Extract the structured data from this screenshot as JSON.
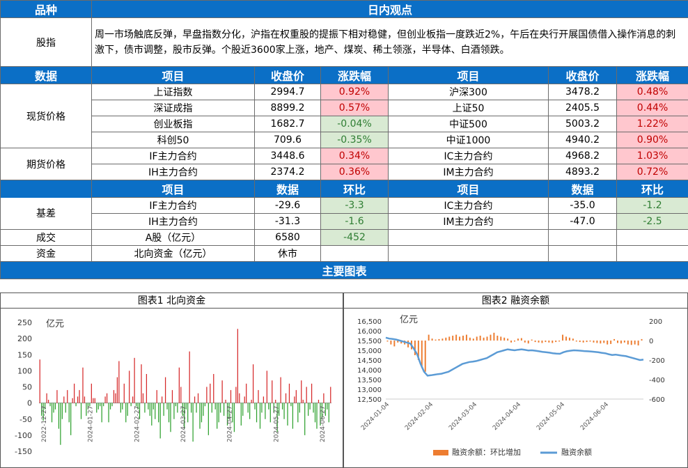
{
  "header": {
    "col1": "品种",
    "col2": "日内观点"
  },
  "index_row": {
    "label": "股指",
    "comment": "周一市场触底反弹，早盘指数分化，沪指在权重股的提振下相对稳健，但创业板指一度跌近2%，午后在央行开展国债借入操作消息的刺激下，债市调整，股市反弹。个股近3600家上涨，地产、煤炭、稀土领涨，半导体、白酒领跌。"
  },
  "price_header": [
    "数据",
    "项目",
    "收盘价",
    "涨跌幅",
    "项目",
    "收盘价",
    "涨跌幅"
  ],
  "spot": {
    "label": "现货价格",
    "rows": [
      {
        "item1": "上证指数",
        "close1": "2994.7",
        "chg1": "0.92%",
        "dir1": "pos",
        "item2": "沪深300",
        "close2": "3478.2",
        "chg2": "0.48%",
        "dir2": "pos"
      },
      {
        "item1": "深证成指",
        "close1": "8899.2",
        "chg1": "0.57%",
        "dir1": "pos",
        "item2": "上证50",
        "close2": "2405.5",
        "chg2": "0.44%",
        "dir2": "pos"
      },
      {
        "item1": "创业板指",
        "close1": "1682.7",
        "chg1": "-0.04%",
        "dir1": "neg",
        "item2": "中证500",
        "close2": "5003.2",
        "chg2": "1.22%",
        "dir2": "pos"
      },
      {
        "item1": "科创50",
        "close1": "709.6",
        "chg1": "-0.35%",
        "dir1": "neg",
        "item2": "中证1000",
        "close2": "4940.2",
        "chg2": "0.90%",
        "dir2": "pos"
      }
    ]
  },
  "futures": {
    "label": "期货价格",
    "rows": [
      {
        "item1": "IF主力合约",
        "close1": "3448.6",
        "chg1": "0.34%",
        "dir1": "pos",
        "item2": "IC主力合约",
        "close2": "4968.2",
        "chg2": "1.03%",
        "dir2": "pos"
      },
      {
        "item1": "IH主力合约",
        "close1": "2374.2",
        "chg1": "0.36%",
        "dir1": "pos",
        "item2": "IM主力合约",
        "close2": "4893.2",
        "chg2": "0.72%",
        "dir2": "pos"
      }
    ]
  },
  "basis_header": [
    "项目",
    "数据",
    "环比",
    "项目",
    "数据",
    "环比"
  ],
  "basis": {
    "label": "基差",
    "rows": [
      {
        "item1": "IF主力合约",
        "val1": "-29.6",
        "chg1": "-3.3",
        "item2": "IC主力合约",
        "val2": "-35.0",
        "chg2": "-1.2"
      },
      {
        "item1": "IH主力合约",
        "val1": "-31.3",
        "chg1": "-1.6",
        "item2": "IM主力合约",
        "val2": "-47.0",
        "chg2": "-2.5"
      }
    ]
  },
  "turnover": {
    "label": "成交",
    "item": "A股（亿元）",
    "val": "6580",
    "chg": "-452"
  },
  "capital": {
    "label": "资金",
    "item": "北向资金（亿元）",
    "val": "休市"
  },
  "charts_header": "主要图表",
  "chart_data": [
    {
      "type": "bar",
      "title": "图表1 北向资金",
      "ylabel": "亿元",
      "ylim": [
        -150,
        250
      ],
      "yticks": [
        250,
        200,
        150,
        100,
        50,
        0,
        -50,
        -100,
        -150
      ],
      "xticks": [
        "2022-12-27",
        "2024-01-27",
        "2024-02-27",
        "2024-03-27",
        "2024-04-27",
        "2024-05-27",
        "2024-06-27"
      ],
      "pos_color": "#d62728",
      "neg_color": "#2ca02c",
      "values": [
        135,
        -40,
        -55,
        -20,
        30,
        10,
        -10,
        -60,
        -30,
        -20,
        40,
        -80,
        -130,
        -50,
        20,
        -30,
        40,
        -60,
        -100,
        15,
        60,
        -10,
        20,
        40,
        -50,
        110,
        20,
        -40,
        -20,
        -10,
        60,
        15,
        15,
        -30,
        -20,
        -10,
        -60,
        -10,
        20,
        30,
        -60,
        -20,
        -10,
        40,
        30,
        80,
        130,
        -30,
        -20,
        60,
        -60,
        -40,
        100,
        -10,
        20,
        140,
        -10,
        -20,
        -50,
        120,
        30,
        -30,
        90,
        -20,
        -40,
        -70,
        -20,
        -50,
        40,
        -60,
        -110,
        20,
        -40,
        80,
        -20,
        -60,
        -90,
        40,
        -50,
        -10,
        -30,
        110,
        50,
        -40,
        -80,
        -20,
        -60,
        160,
        -30,
        -120,
        20,
        -30,
        30,
        -80,
        -60,
        -40,
        -10,
        50,
        -100,
        60,
        -30,
        90,
        -20,
        -80,
        -60,
        -30,
        70,
        -40,
        10,
        -70,
        -50,
        40,
        -60,
        -90,
        50,
        230,
        30,
        -70,
        -40,
        20,
        60,
        -30,
        -50,
        10,
        120,
        -20,
        -60,
        40,
        -80,
        -30,
        20,
        -50,
        100,
        -20,
        -60,
        70,
        -30,
        10,
        -90,
        -40,
        80,
        -20,
        -50,
        30,
        -70,
        60,
        -10,
        -80,
        20,
        40,
        -60,
        -30,
        70,
        10,
        -100,
        50,
        -40,
        -20,
        60,
        -30,
        -60,
        -80,
        10,
        -70,
        -50,
        30,
        -40,
        -20,
        -60,
        50
      ]
    },
    {
      "type": "line",
      "title": "图表2 融资余额",
      "ylabel": "亿元",
      "ylim": [
        12500,
        16500
      ],
      "yticks_left": [
        16500,
        16000,
        15500,
        15000,
        14500,
        14000,
        13500,
        13000,
        12500
      ],
      "yticks_right": [
        200,
        0,
        -200,
        -400,
        -600
      ],
      "y2lim": [
        -600,
        200
      ],
      "xticks": [
        "2024-01-04",
        "2024-02-04",
        "2024-03-04",
        "2024-04-04",
        "2024-05-04",
        "2024-06-04"
      ],
      "legend": [
        "融资余额：环比增加",
        "融资余额"
      ],
      "bar_color": "#ed7d31",
      "line_color": "#5b9bd5",
      "line_values": [
        15650,
        15600,
        15580,
        15550,
        15500,
        15450,
        15400,
        15350,
        15100,
        14800,
        14300,
        13900,
        13700,
        13720,
        13750,
        13780,
        13800,
        13850,
        13900,
        14000,
        14100,
        14200,
        14300,
        14350,
        14400,
        14420,
        14450,
        14500,
        14550,
        14600,
        14700,
        14800,
        14900,
        14950,
        15000,
        15050,
        15020,
        15000,
        15030,
        15050,
        15020,
        14990,
        15000,
        14980,
        14950,
        14920,
        14900,
        14880,
        14850,
        14830,
        14820,
        14900,
        14950,
        14980,
        15000,
        14990,
        14980,
        14960,
        14950,
        14940,
        14920,
        14900,
        14870,
        14850,
        14800,
        14760,
        14780,
        14750,
        14720,
        14700,
        14650,
        14600,
        14550,
        14500,
        14520
      ],
      "bar_values": [
        -10,
        -40,
        -60,
        -20,
        -30,
        -40,
        -70,
        -90,
        -150,
        -200,
        -280,
        -320,
        60,
        20,
        10,
        15,
        20,
        30,
        40,
        50,
        60,
        40,
        50,
        60,
        30,
        20,
        40,
        50,
        30,
        40,
        60,
        80,
        50,
        40,
        30,
        20,
        -20,
        -10,
        20,
        25,
        -20,
        -30,
        10,
        -15,
        -20,
        -25,
        -15,
        -20,
        -25,
        -15,
        -10,
        60,
        40,
        30,
        20,
        -10,
        -15,
        -20,
        -15,
        -10,
        -20,
        -25,
        -30,
        -25,
        -40,
        -35,
        15,
        -25,
        -30,
        -20,
        -40,
        -45,
        -40,
        -50,
        15
      ]
    }
  ]
}
